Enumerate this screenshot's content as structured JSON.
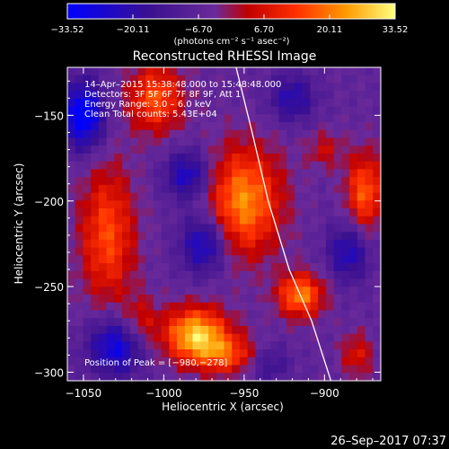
{
  "chart_data": {
    "type": "heatmap",
    "title": "Reconstructed RHESSI Image",
    "xlabel": "Heliocentric X (arcsec)",
    "ylabel": "Heliocentric Y (arcsec)",
    "xlim": [
      -1060,
      -865
    ],
    "ylim": [
      -305,
      -122
    ],
    "x_ticks": [
      -1050,
      -1000,
      -950,
      -900
    ],
    "x_tick_labels": [
      "−1050",
      "−1000",
      "−950",
      "−900"
    ],
    "y_ticks": [
      -300,
      -250,
      -200,
      -150
    ],
    "y_tick_labels": [
      "−300",
      "−250",
      "−200",
      "−150"
    ],
    "grid": false,
    "colorbar": {
      "min": -33.52,
      "max": 33.52,
      "tick_values": [
        -33.52,
        -20.11,
        -6.7,
        6.7,
        20.11,
        33.52
      ],
      "tick_labels": [
        "−33.52",
        "−20.11",
        "−6.70",
        "6.70",
        "20.11",
        "33.52"
      ],
      "unit_label": "(photons cm⁻² s⁻¹ asec⁻²)"
    },
    "annotations": {
      "time_range": "14–Apr–2015 15:38:48.000 to 15:48:48.000",
      "detectors": "Detectors: 3F 5F 6F 7F 8F 9F, Att 1",
      "energy": "Energy Range: 3.0 – 6.0 keV",
      "clean": "Clean    Total counts: 5.43E+04",
      "peak": "Position of Peak = [−980,−278]"
    },
    "limb": [
      [
        -955,
        -122
      ],
      [
        -945,
        -160
      ],
      [
        -935,
        -200
      ],
      [
        -922,
        -240
      ],
      [
        -908,
        -270
      ],
      [
        -896,
        -305
      ]
    ],
    "sources": [
      {
        "x": -980,
        "y": -278,
        "sx": 14,
        "sy": 11,
        "amp": 34
      },
      {
        "x": -950,
        "y": -200,
        "sx": 16,
        "sy": 22,
        "amp": 28
      },
      {
        "x": -915,
        "y": -255,
        "sx": 10,
        "sy": 9,
        "amp": 27
      },
      {
        "x": -1035,
        "y": -220,
        "sx": 12,
        "sy": 28,
        "amp": 21
      },
      {
        "x": -1005,
        "y": -140,
        "sx": 12,
        "sy": 14,
        "amp": 22
      },
      {
        "x": -875,
        "y": -195,
        "sx": 8,
        "sy": 16,
        "amp": 23
      },
      {
        "x": -960,
        "y": -290,
        "sx": 14,
        "sy": 8,
        "amp": 18
      },
      {
        "x": -1015,
        "y": -270,
        "sx": 8,
        "sy": 10,
        "amp": 12
      },
      {
        "x": -880,
        "y": -290,
        "sx": 7,
        "sy": 9,
        "amp": 13
      },
      {
        "x": -900,
        "y": -170,
        "sx": 8,
        "sy": 8,
        "amp": 10
      }
    ],
    "negative_regions": [
      {
        "x": -1050,
        "y": -150,
        "sx": 9,
        "sy": 14,
        "amp": -30
      },
      {
        "x": -985,
        "y": -185,
        "sx": 10,
        "sy": 10,
        "amp": -20
      },
      {
        "x": -975,
        "y": -225,
        "sx": 10,
        "sy": 12,
        "amp": -22
      },
      {
        "x": -1030,
        "y": -285,
        "sx": 12,
        "sy": 12,
        "amp": -24
      },
      {
        "x": -920,
        "y": -140,
        "sx": 10,
        "sy": 10,
        "amp": -16
      },
      {
        "x": -885,
        "y": -230,
        "sx": 9,
        "sy": 12,
        "amp": -18
      },
      {
        "x": -935,
        "y": -295,
        "sx": 9,
        "sy": 8,
        "amp": -12
      }
    ],
    "baseline": -6
  },
  "footer": {
    "timestamp": "26–Sep–2017 07:37"
  }
}
